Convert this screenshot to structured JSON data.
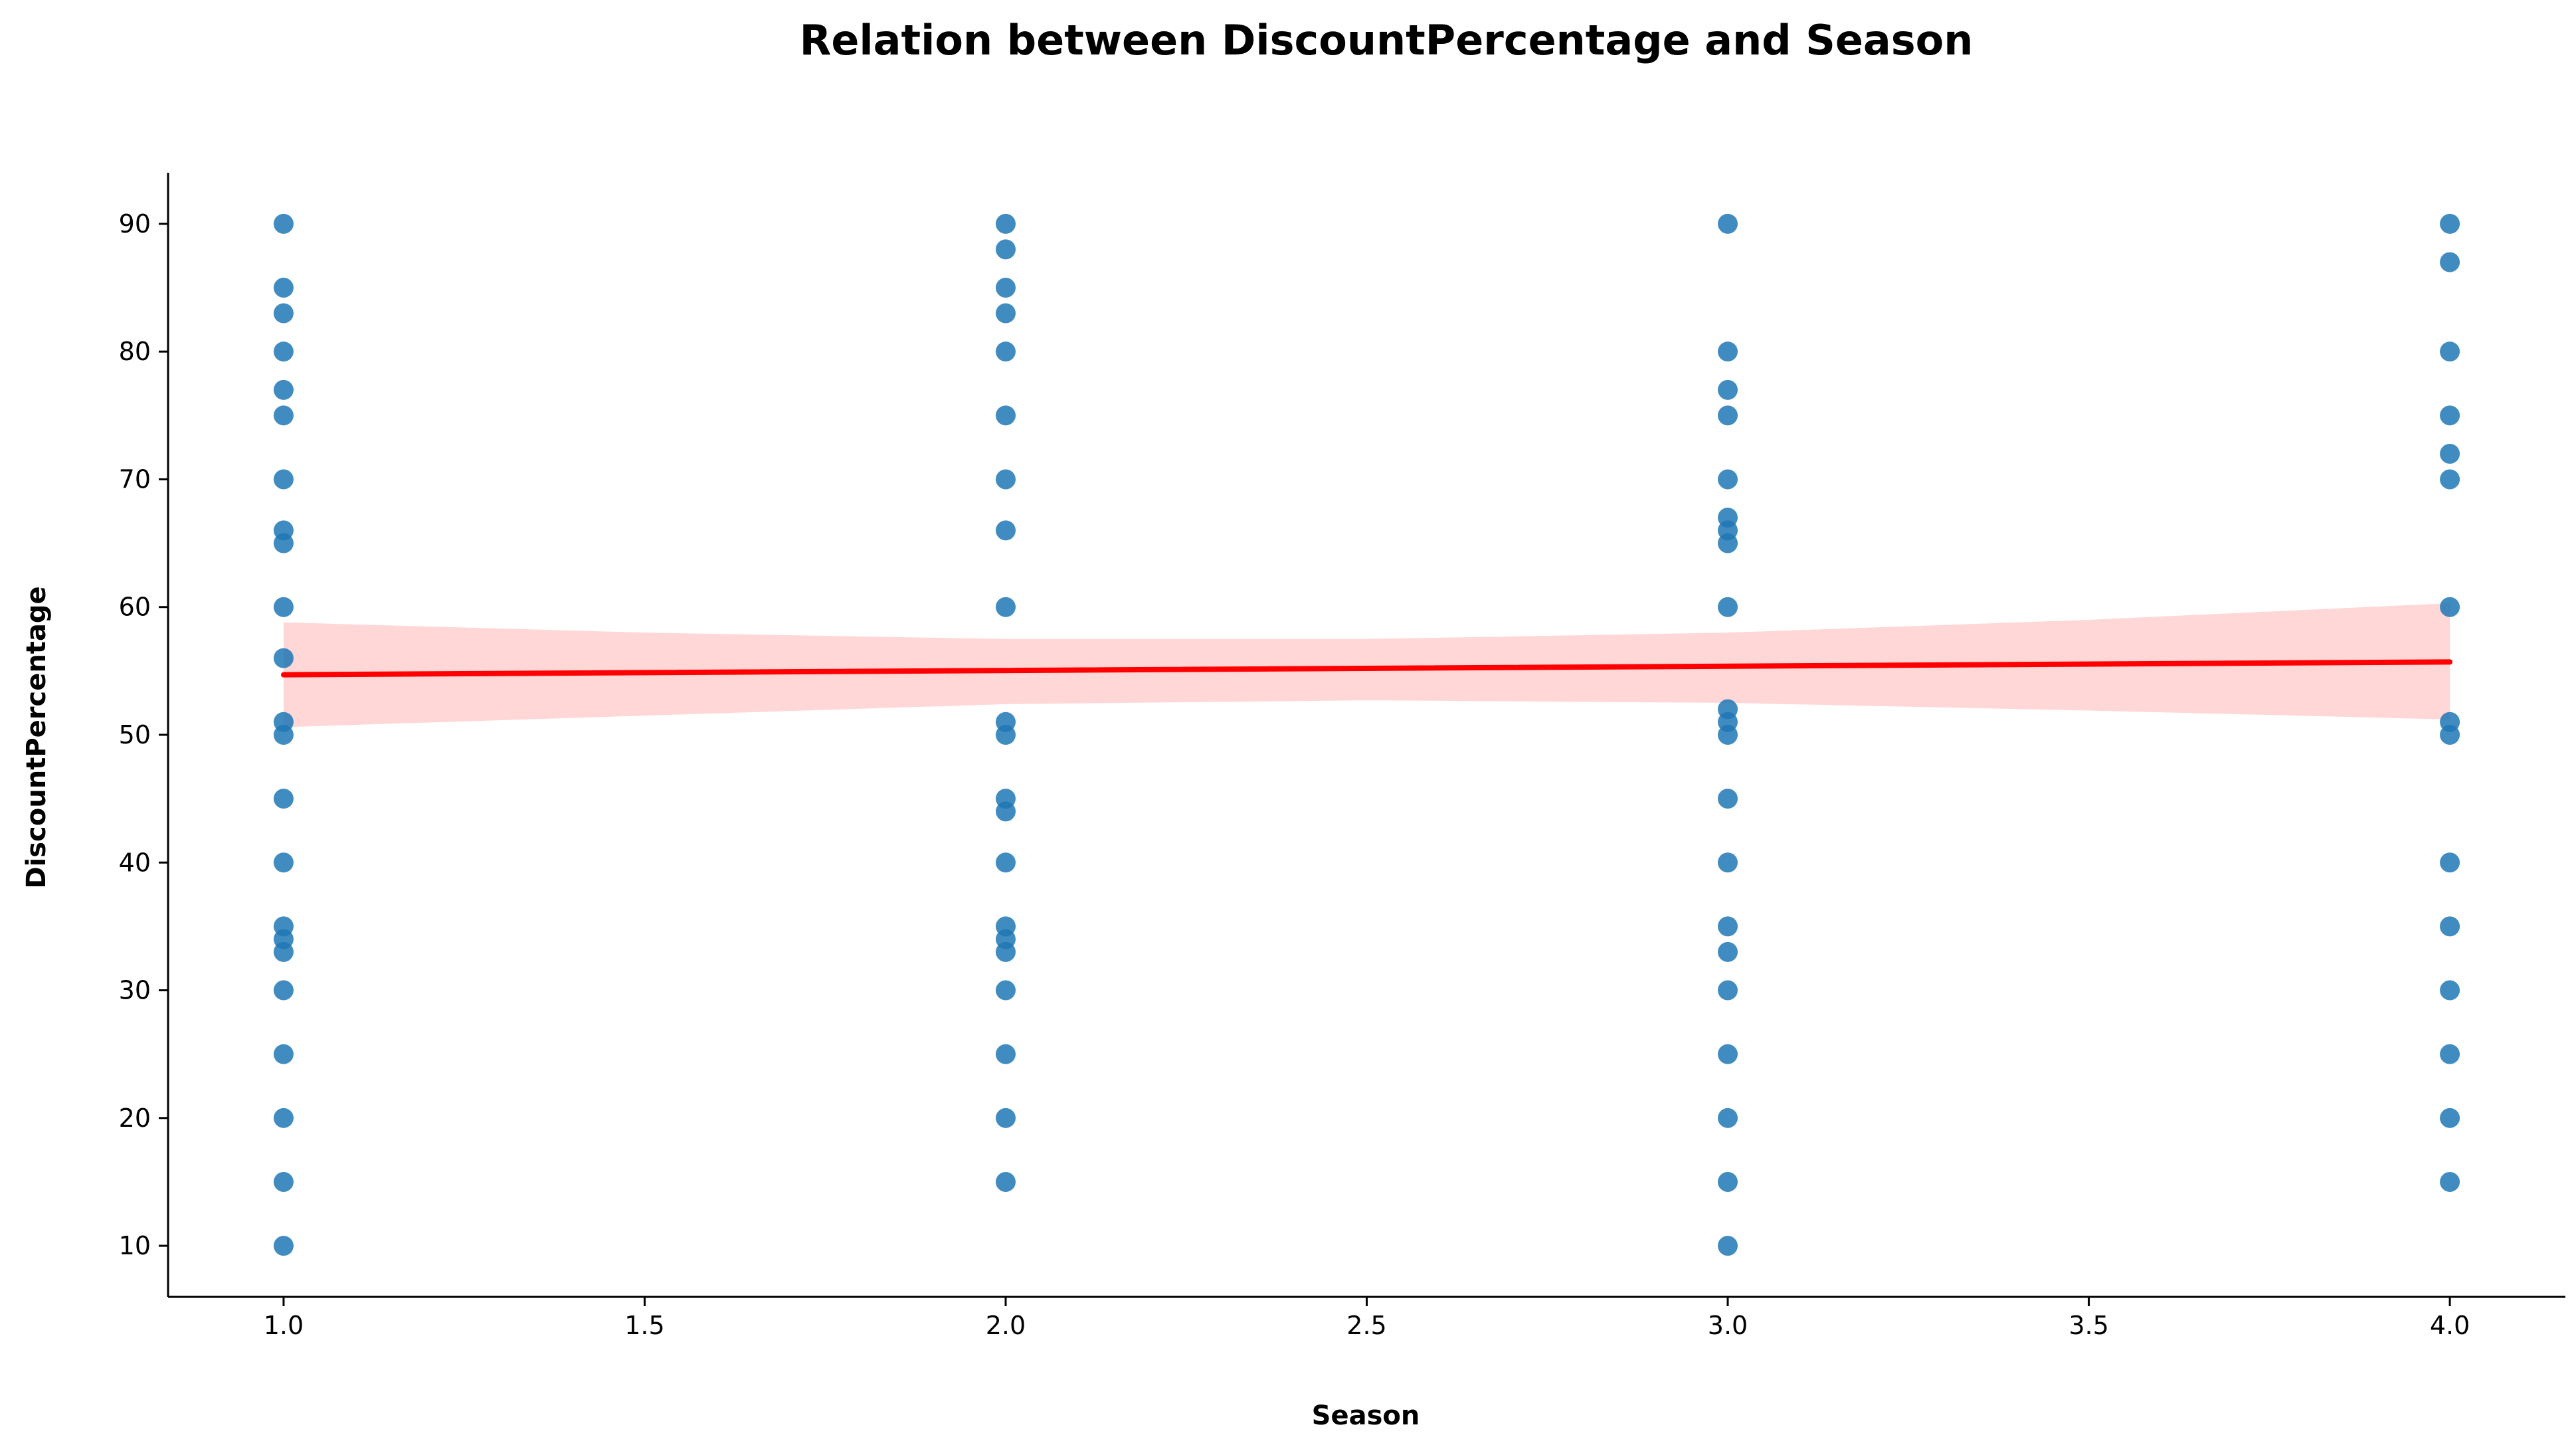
{
  "chart_data": {
    "type": "scatter",
    "title": "Relation between DiscountPercentage and Season",
    "xlabel": "Season",
    "ylabel": "DiscountPercentage",
    "xlim": [
      0.84,
      4.16
    ],
    "ylim": [
      6,
      94
    ],
    "xticks": [
      "1.0",
      "1.5",
      "2.0",
      "2.5",
      "3.0",
      "3.5",
      "4.0"
    ],
    "yticks": [
      "10",
      "20",
      "30",
      "40",
      "50",
      "60",
      "70",
      "80",
      "90"
    ],
    "grid": false,
    "points": [
      [
        1,
        10
      ],
      [
        1,
        15
      ],
      [
        1,
        20
      ],
      [
        1,
        25
      ],
      [
        1,
        30
      ],
      [
        1,
        33
      ],
      [
        1,
        34
      ],
      [
        1,
        35
      ],
      [
        1,
        40
      ],
      [
        1,
        45
      ],
      [
        1,
        50
      ],
      [
        1,
        51
      ],
      [
        1,
        56
      ],
      [
        1,
        60
      ],
      [
        1,
        65
      ],
      [
        1,
        66
      ],
      [
        1,
        70
      ],
      [
        1,
        75
      ],
      [
        1,
        77
      ],
      [
        1,
        80
      ],
      [
        1,
        83
      ],
      [
        1,
        85
      ],
      [
        1,
        90
      ],
      [
        2,
        15
      ],
      [
        2,
        20
      ],
      [
        2,
        25
      ],
      [
        2,
        30
      ],
      [
        2,
        33
      ],
      [
        2,
        34
      ],
      [
        2,
        35
      ],
      [
        2,
        40
      ],
      [
        2,
        44
      ],
      [
        2,
        45
      ],
      [
        2,
        50
      ],
      [
        2,
        51
      ],
      [
        2,
        60
      ],
      [
        2,
        66
      ],
      [
        2,
        70
      ],
      [
        2,
        75
      ],
      [
        2,
        80
      ],
      [
        2,
        83
      ],
      [
        2,
        85
      ],
      [
        2,
        88
      ],
      [
        2,
        90
      ],
      [
        3,
        10
      ],
      [
        3,
        15
      ],
      [
        3,
        20
      ],
      [
        3,
        25
      ],
      [
        3,
        30
      ],
      [
        3,
        33
      ],
      [
        3,
        35
      ],
      [
        3,
        40
      ],
      [
        3,
        45
      ],
      [
        3,
        50
      ],
      [
        3,
        51
      ],
      [
        3,
        52
      ],
      [
        3,
        60
      ],
      [
        3,
        65
      ],
      [
        3,
        66
      ],
      [
        3,
        67
      ],
      [
        3,
        70
      ],
      [
        3,
        75
      ],
      [
        3,
        77
      ],
      [
        3,
        80
      ],
      [
        3,
        90
      ],
      [
        4,
        15
      ],
      [
        4,
        20
      ],
      [
        4,
        25
      ],
      [
        4,
        30
      ],
      [
        4,
        35
      ],
      [
        4,
        40
      ],
      [
        4,
        50
      ],
      [
        4,
        51
      ],
      [
        4,
        60
      ],
      [
        4,
        70
      ],
      [
        4,
        72
      ],
      [
        4,
        75
      ],
      [
        4,
        80
      ],
      [
        4,
        87
      ],
      [
        4,
        90
      ]
    ],
    "regression": {
      "x": [
        1.0,
        4.0
      ],
      "y": [
        54.7,
        55.7
      ]
    },
    "confidence_band": {
      "x": [
        1.0,
        1.5,
        2.0,
        2.5,
        3.0,
        3.5,
        4.0
      ],
      "upper": [
        58.8,
        58.0,
        57.5,
        57.5,
        58.0,
        59.0,
        60.3
      ],
      "lower": [
        50.6,
        51.5,
        52.4,
        52.7,
        52.5,
        51.9,
        51.2
      ]
    },
    "colors": {
      "points": "#1f77b4",
      "regression_line": "#ff0000",
      "band": "#ffd7d7",
      "axis": "#000000"
    }
  }
}
